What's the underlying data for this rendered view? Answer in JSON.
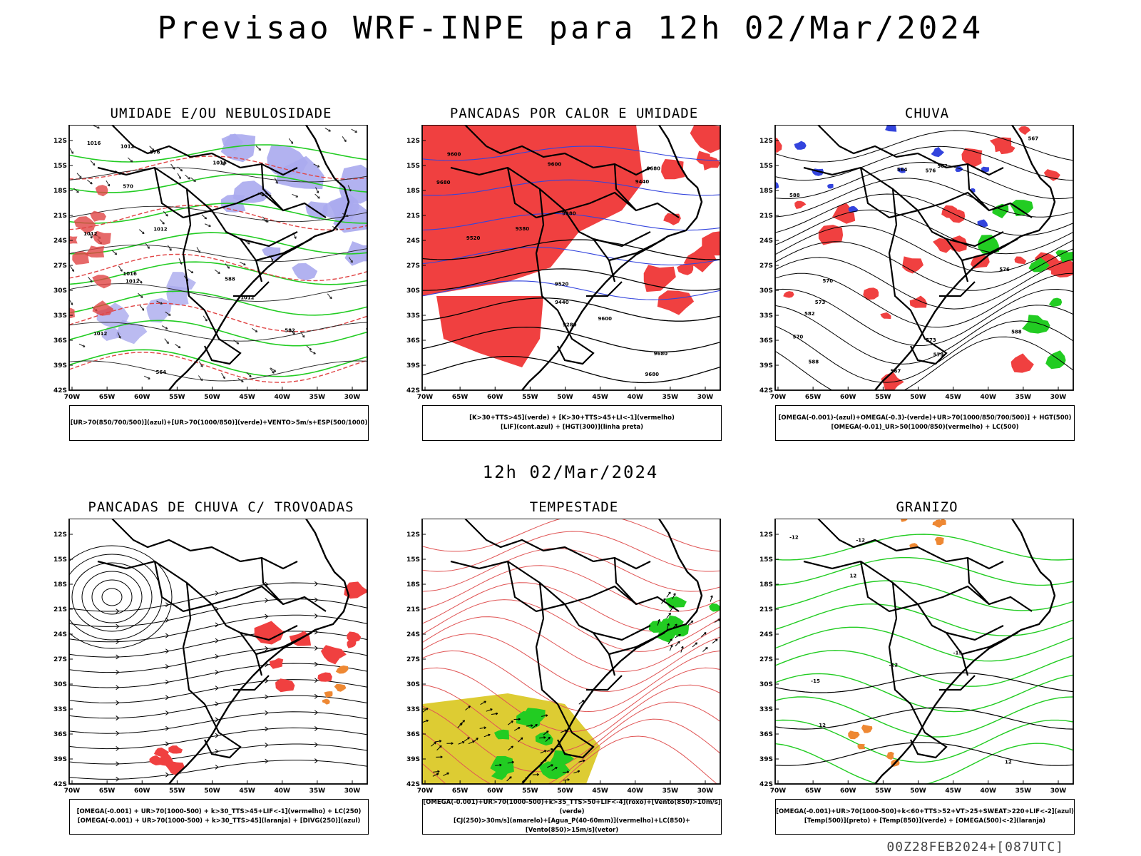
{
  "header": {
    "title": "Previsao WRF-INPE  para 12h 02/Mar/2024",
    "mid_title": "12h 02/Mar/2024",
    "run_info": "00Z28FEB2024+[087UTC]"
  },
  "axes": {
    "lat_labels": [
      "12S",
      "15S",
      "18S",
      "21S",
      "24S",
      "27S",
      "30S",
      "33S",
      "36S",
      "39S",
      "42S"
    ],
    "lon_labels": [
      "70W",
      "65W",
      "60W",
      "55W",
      "50W",
      "45W",
      "40W",
      "35W",
      "30W"
    ]
  },
  "colors": {
    "red_field": "#f04040",
    "green_contour": "#22cc22",
    "blue_contour": "#3344dd",
    "purple_field": "#aaaaee",
    "yellow_field": "#ddcc33",
    "orange_field": "#ee8833"
  },
  "panels": [
    {
      "id": "umidade",
      "title": "UMIDADE E/OU NEBULOSIDADE",
      "legend": [
        "[UR>70(850/700/500)](azul)+[UR>70(1000/850)](verde)+VENTO>5m/s+ESP(500/1000)"
      ],
      "contour_labels": [
        "1012",
        "1012",
        "1012",
        "1012",
        "1012",
        "1016",
        "1016",
        "1012",
        "1016",
        "570",
        "576",
        "582",
        "588",
        "564"
      ]
    },
    {
      "id": "pancadas-calor",
      "title": "PANCADAS POR CALOR E UMIDADE",
      "legend": [
        "[K>30+TTS>45](verde) + [K>30+TTS>45+LI<-1](vermelho)",
        "[LIF](cont.azul) + [HGT(300)](linha preta)"
      ],
      "contour_labels": [
        "9680",
        "9680",
        "9680",
        "9600",
        "9520",
        "9440",
        "9380",
        "9280",
        "9600",
        "9520",
        "9440",
        "9380",
        "9600",
        "9680"
      ]
    },
    {
      "id": "chuva",
      "title": "CHUVA",
      "legend": [
        "[OMEGA(-0.001)-(azul)+OMEGA(-0.3)-(verde)+UR>70(1000/850/700/500)] + HGT(500)",
        "[OMEGA(-0.01)_UR>50(1000/850)(vermelho) + LC(500)"
      ],
      "contour_labels": [
        "588",
        "588",
        "582",
        "576",
        "579",
        "573",
        "570",
        "567",
        "564",
        "576",
        "573",
        "570",
        "567",
        "582",
        "588"
      ]
    },
    {
      "id": "trovoadas",
      "title": "PANCADAS DE CHUVA C/ TROVOADAS",
      "legend": [
        "[OMEGA(-0.001) + UR>70(1000-500) + k>30_TTS>45+LIF<-1](vermelho) + LC(250)",
        "[OMEGA(-0.001) + UR>70(1000-500) + k>30_TTS>45](laranja) + [DIVG(250)](azul)"
      ],
      "contour_labels": []
    },
    {
      "id": "tempestade",
      "title": "TEMPESTADE",
      "legend": [
        "[OMEGA(-0.001)+UR>70(1000-500)+k>35_TTS>50+LIF<-4](roxo)+[Vento(850)>10m/s](verde)",
        "[CJ(250)>30m/s](amarelo)+[Agua_P(40-60mm)](vermelho)+LC(850)+[Vento(850)>15m/s](vetor)"
      ],
      "contour_labels": []
    },
    {
      "id": "granizo",
      "title": "GRANIZO",
      "legend": [
        "[OMEGA(-0.001)+UR>70(1000-500)+k<60+TTS>52+VT>25+SWEAT>220+LIF<-2](azul)",
        "[Temp(500)](preto) + [Temp(850)](verde) + [OMEGA(500)<-2](laranja)"
      ],
      "contour_labels": [
        "-12",
        "-12",
        "-12",
        "-15",
        "-15",
        "12",
        "12",
        "12"
      ]
    }
  ]
}
